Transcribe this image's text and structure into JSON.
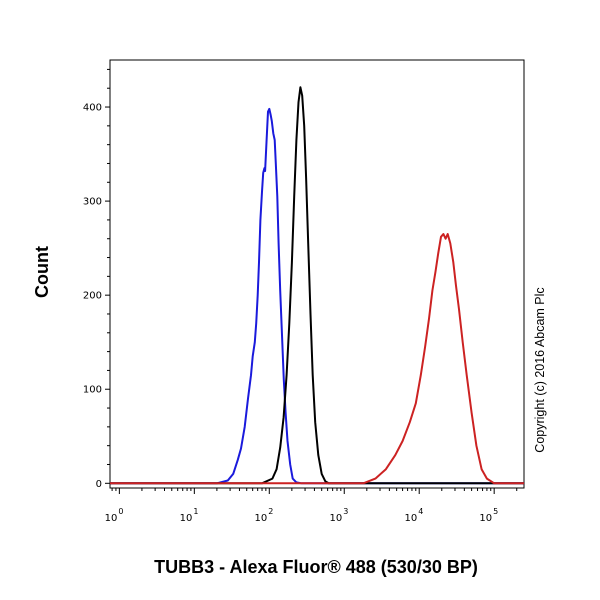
{
  "chart_data": {
    "type": "line",
    "title": "",
    "xlabel": "TUBB3 - Alexa Fluor® 488 (530/30 BP)",
    "ylabel": "Count",
    "annotation": "Copyright (c) 2016 Abcam Plc",
    "x_scale": "log",
    "xlim": [
      0.75,
      250000
    ],
    "ylim": [
      -5,
      450
    ],
    "grid": false,
    "x_ticks": [
      {
        "base": "10",
        "exp": "0",
        "value": 1
      },
      {
        "base": "10",
        "exp": "1",
        "value": 10
      },
      {
        "base": "10",
        "exp": "2",
        "value": 100
      },
      {
        "base": "10",
        "exp": "3",
        "value": 1000
      },
      {
        "base": "10",
        "exp": "4",
        "value": 10000
      },
      {
        "base": "10",
        "exp": "5",
        "value": 100000
      }
    ],
    "y_ticks": [
      {
        "label": "0",
        "value": 0
      },
      {
        "label": "100",
        "value": 100
      },
      {
        "label": "200",
        "value": 200
      },
      {
        "label": "300",
        "value": 300
      },
      {
        "label": "400",
        "value": 400
      }
    ],
    "series": [
      {
        "color": "#1a1adc",
        "x": [
          0.75,
          20,
          28,
          33,
          38,
          42,
          47,
          52,
          57,
          60,
          64,
          67,
          70,
          73,
          76,
          80,
          83,
          86,
          88,
          92,
          96,
          100,
          104,
          108,
          113,
          118,
          122,
          128,
          133,
          140,
          148,
          156,
          165,
          175,
          190,
          205,
          230,
          270,
          250000
        ],
        "y": [
          0,
          0,
          3,
          10,
          25,
          37,
          60,
          90,
          115,
          135,
          150,
          170,
          200,
          235,
          280,
          310,
          330,
          335,
          332,
          365,
          395,
          398,
          392,
          385,
          372,
          365,
          340,
          305,
          255,
          205,
          155,
          110,
          75,
          45,
          20,
          5,
          1,
          0,
          0
        ]
      },
      {
        "color": "#000000",
        "x": [
          0.75,
          80,
          110,
          125,
          140,
          155,
          170,
          185,
          200,
          215,
          230,
          245,
          260,
          275,
          292,
          310,
          330,
          355,
          380,
          410,
          450,
          500,
          560,
          620,
          250000
        ],
        "y": [
          0,
          0,
          5,
          15,
          38,
          70,
          115,
          170,
          235,
          305,
          365,
          405,
          421,
          412,
          380,
          325,
          255,
          180,
          115,
          65,
          30,
          10,
          2,
          0,
          0
        ]
      },
      {
        "color": "#cc2222",
        "x": [
          0.75,
          1800,
          2600,
          3600,
          4800,
          6000,
          7500,
          9000,
          10500,
          12000,
          13500,
          15000,
          16500,
          18000,
          19500,
          21000,
          22500,
          24000,
          26000,
          28500,
          31000,
          34000,
          38000,
          43000,
          50000,
          58000,
          68000,
          80000,
          100000,
          250000
        ],
        "y": [
          0,
          0,
          5,
          15,
          30,
          45,
          65,
          85,
          115,
          145,
          175,
          205,
          225,
          245,
          262,
          265,
          260,
          265,
          255,
          235,
          210,
          185,
          150,
          115,
          75,
          40,
          15,
          5,
          0,
          0
        ]
      }
    ]
  }
}
